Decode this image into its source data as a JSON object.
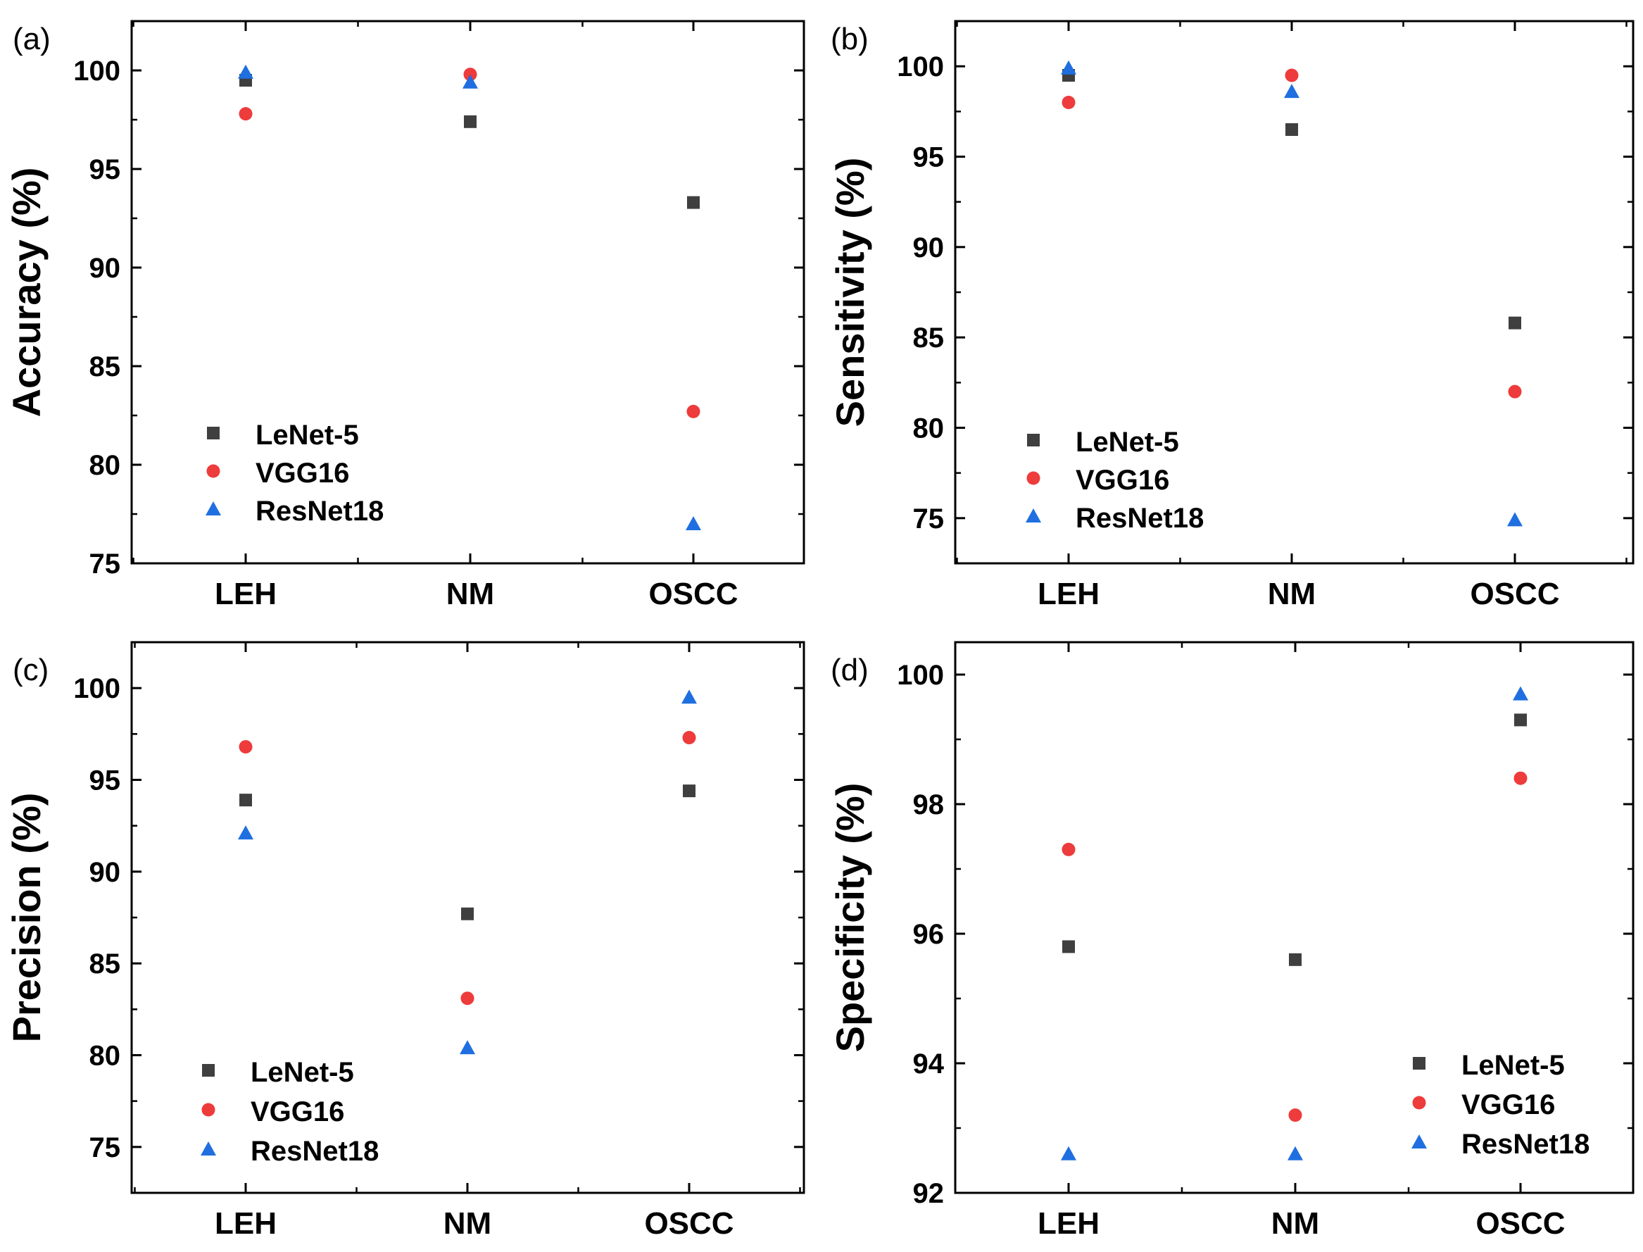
{
  "colors": {
    "LeNet-5": "#3f3f3f",
    "VGG16": "#ee3b3b",
    "ResNet18": "#1f6fe0"
  },
  "chart_data": [
    {
      "panel": "(a)",
      "type": "scatter",
      "categories": [
        "LEH",
        "NM",
        "OSCC"
      ],
      "ylabel": "Accuracy (%)",
      "ylim": [
        75,
        102.5
      ],
      "yticks": [
        75,
        80,
        85,
        90,
        95,
        100
      ],
      "legend_position": "bottom-left",
      "series": [
        {
          "name": "LeNet-5",
          "marker": "square",
          "values": [
            99.5,
            97.4,
            93.3
          ]
        },
        {
          "name": "VGG16",
          "marker": "circle",
          "values": [
            97.8,
            99.8,
            82.7
          ]
        },
        {
          "name": "ResNet18",
          "marker": "triangle",
          "values": [
            99.9,
            99.4,
            77.0
          ]
        }
      ]
    },
    {
      "panel": "(b)",
      "type": "scatter",
      "categories": [
        "LEH",
        "NM",
        "OSCC"
      ],
      "ylabel": "Sensitivity (%)",
      "ylim": [
        72.5,
        102.5
      ],
      "yticks": [
        75,
        80,
        85,
        90,
        95,
        100
      ],
      "legend_position": "bottom-left",
      "series": [
        {
          "name": "LeNet-5",
          "marker": "square",
          "values": [
            99.5,
            96.5,
            85.8
          ]
        },
        {
          "name": "VGG16",
          "marker": "circle",
          "values": [
            98.0,
            99.5,
            82.0
          ]
        },
        {
          "name": "ResNet18",
          "marker": "triangle",
          "values": [
            99.9,
            98.6,
            74.9
          ]
        }
      ]
    },
    {
      "panel": "(c)",
      "type": "scatter",
      "categories": [
        "LEH",
        "NM",
        "OSCC"
      ],
      "ylabel": "Precision (%)",
      "ylim": [
        72.5,
        102.5
      ],
      "yticks": [
        75,
        80,
        85,
        90,
        95,
        100
      ],
      "legend_position": "bottom-left",
      "series": [
        {
          "name": "LeNet-5",
          "marker": "square",
          "values": [
            93.9,
            87.7,
            94.4
          ]
        },
        {
          "name": "VGG16",
          "marker": "circle",
          "values": [
            96.8,
            83.1,
            97.3
          ]
        },
        {
          "name": "ResNet18",
          "marker": "triangle",
          "values": [
            92.1,
            80.4,
            99.5
          ]
        }
      ]
    },
    {
      "panel": "(d)",
      "type": "scatter",
      "categories": [
        "LEH",
        "NM",
        "OSCC"
      ],
      "ylabel": "Specificity (%)",
      "ylim": [
        92,
        100.5
      ],
      "yticks": [
        92,
        94,
        96,
        98,
        100
      ],
      "legend_position": "bottom-right",
      "series": [
        {
          "name": "LeNet-5",
          "marker": "square",
          "values": [
            95.8,
            95.6,
            99.3
          ]
        },
        {
          "name": "VGG16",
          "marker": "circle",
          "values": [
            97.3,
            93.2,
            98.4
          ]
        },
        {
          "name": "ResNet18",
          "marker": "triangle",
          "values": [
            92.6,
            92.6,
            99.7
          ]
        }
      ]
    }
  ]
}
